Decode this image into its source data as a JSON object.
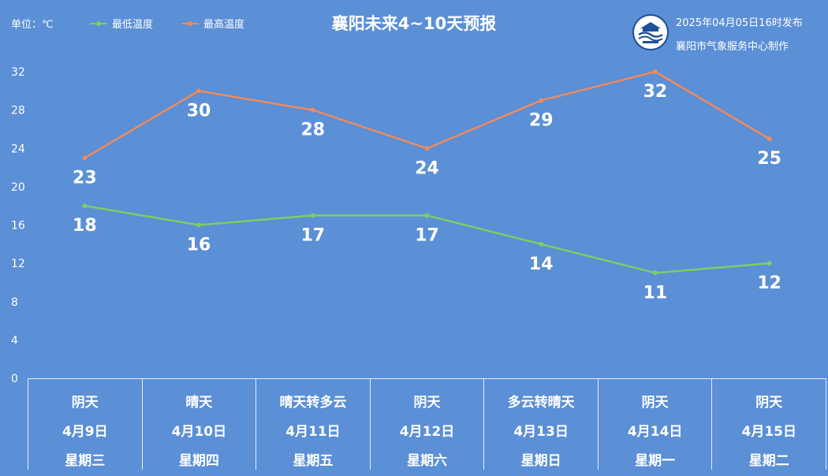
{
  "header": {
    "unit_label": "单位：℃",
    "title": "襄阳未来4~10天预报",
    "publish_time": "2025年04月05日16时发布",
    "maker": "襄阳市气象服务中心制作",
    "logo_text": "襄阳气象"
  },
  "colors": {
    "background": "#5b8fd6",
    "low_series": "#7ccf63",
    "high_series": "#f08a5d"
  },
  "chart_data": {
    "type": "line",
    "title": "襄阳未来4~10天预报",
    "ylabel": "单位：℃",
    "ylim": [
      0,
      32
    ],
    "yticks": [
      0,
      4,
      8,
      12,
      16,
      20,
      24,
      28,
      32
    ],
    "legend_position": "top-left",
    "grid": false,
    "categories": [
      "4月9日",
      "4月10日",
      "4月11日",
      "4月12日",
      "4月13日",
      "4月14日",
      "4月15日"
    ],
    "series": [
      {
        "name": "最低温度",
        "values": [
          18,
          16,
          17,
          17,
          14,
          11,
          12
        ]
      },
      {
        "name": "最高温度",
        "values": [
          23,
          30,
          28,
          24,
          29,
          32,
          25
        ]
      }
    ]
  },
  "days": [
    {
      "weather": "阴天",
      "date": "4月9日",
      "weekday": "星期三"
    },
    {
      "weather": "晴天",
      "date": "4月10日",
      "weekday": "星期四"
    },
    {
      "weather": "晴天转多云",
      "date": "4月11日",
      "weekday": "星期五"
    },
    {
      "weather": "阴天",
      "date": "4月12日",
      "weekday": "星期六"
    },
    {
      "weather": "多云转晴天",
      "date": "4月13日",
      "weekday": "星期日"
    },
    {
      "weather": "阴天",
      "date": "4月14日",
      "weekday": "星期一"
    },
    {
      "weather": "阴天",
      "date": "4月15日",
      "weekday": "星期二"
    }
  ]
}
